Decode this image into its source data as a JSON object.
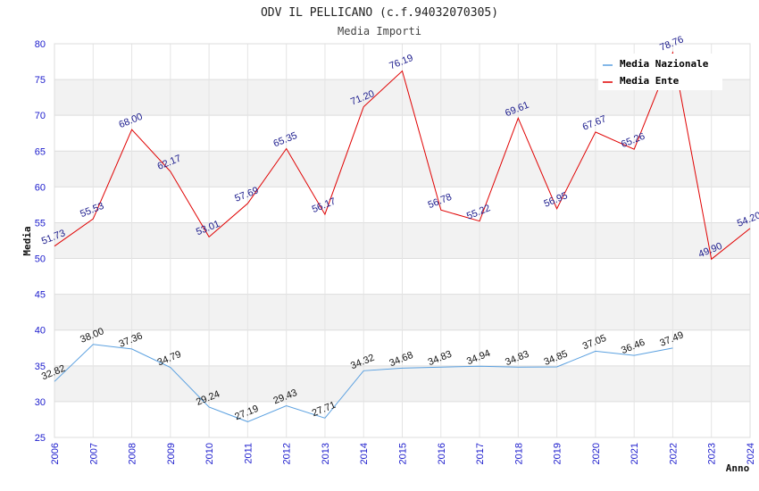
{
  "chart_data": {
    "type": "line",
    "title": "ODV IL PELLICANO (c.f.94032070305)",
    "subtitle": "Media Importi",
    "xlabel": "Anno",
    "ylabel": "Media",
    "ylim": [
      25,
      80
    ],
    "yticks": [
      25,
      30,
      35,
      40,
      45,
      50,
      55,
      60,
      65,
      70,
      75,
      80
    ],
    "grid": true,
    "legend_position": "top-right",
    "x": [
      "2006",
      "2007",
      "2008",
      "2009",
      "2010",
      "2011",
      "2012",
      "2013",
      "2014",
      "2015",
      "2016",
      "2017",
      "2018",
      "2019",
      "2020",
      "2021",
      "2022",
      "2023",
      "2024"
    ],
    "series": [
      {
        "name": "Media Nazionale",
        "color": "#5aa0e0",
        "label_color": "#111111",
        "values": [
          32.82,
          38.0,
          37.36,
          34.79,
          29.24,
          27.19,
          29.43,
          27.71,
          34.32,
          34.68,
          34.83,
          34.94,
          34.83,
          34.85,
          37.05,
          36.46,
          37.49,
          null,
          null
        ],
        "labels": [
          "32.82",
          "38.00",
          "37.36",
          "34.79",
          "29.24",
          "27.19",
          "29.43",
          "27.71",
          "34.32",
          "34.68",
          "34.83",
          "34.94",
          "34.83",
          "34.85",
          "37.05",
          "36.46",
          "37.49",
          null,
          null
        ]
      },
      {
        "name": "Media Ente",
        "color": "#e00000",
        "label_color": "#1a1a8c",
        "values": [
          51.73,
          55.53,
          68.0,
          62.17,
          53.01,
          57.69,
          65.35,
          56.17,
          71.2,
          76.19,
          56.78,
          55.22,
          69.61,
          56.95,
          67.67,
          65.26,
          78.76,
          49.9,
          54.2
        ],
        "labels": [
          "51.73",
          "55.53",
          "68.00",
          "62.17",
          "53.01",
          "57.69",
          "65.35",
          "56.17",
          "71.20",
          "76.19",
          "56.78",
          "55.22",
          "69.61",
          "56.95",
          "67.67",
          "65.26",
          "78.76",
          "49.90",
          "54.20"
        ]
      }
    ]
  }
}
